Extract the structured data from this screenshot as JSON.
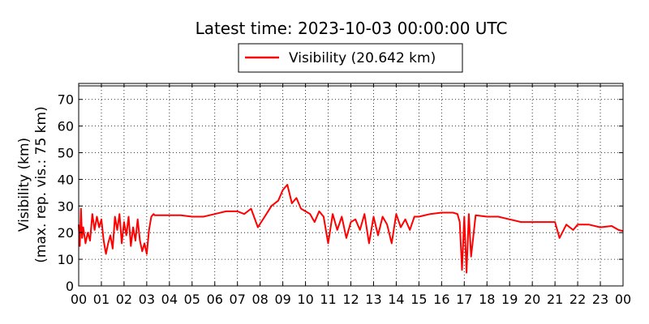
{
  "chart_data": {
    "type": "line",
    "title": "Latest time: 2023-10-03 00:00:00 UTC",
    "ylabel_line1": "Visibility (km)",
    "ylabel_line2": "(max. rep. vis.: 75 km)",
    "xlabel": "",
    "xlim": [
      0,
      24
    ],
    "ylim": [
      0,
      76
    ],
    "grid": true,
    "legend_position": "top-center",
    "x_ticks": [
      {
        "value": 0,
        "label": "00"
      },
      {
        "value": 1,
        "label": "01"
      },
      {
        "value": 2,
        "label": "02"
      },
      {
        "value": 3,
        "label": "03"
      },
      {
        "value": 4,
        "label": "04"
      },
      {
        "value": 5,
        "label": "05"
      },
      {
        "value": 6,
        "label": "06"
      },
      {
        "value": 7,
        "label": "07"
      },
      {
        "value": 8,
        "label": "08"
      },
      {
        "value": 9,
        "label": "09"
      },
      {
        "value": 10,
        "label": "10"
      },
      {
        "value": 11,
        "label": "11"
      },
      {
        "value": 12,
        "label": "12"
      },
      {
        "value": 13,
        "label": "13"
      },
      {
        "value": 14,
        "label": "14"
      },
      {
        "value": 15,
        "label": "15"
      },
      {
        "value": 16,
        "label": "16"
      },
      {
        "value": 17,
        "label": "17"
      },
      {
        "value": 18,
        "label": "18"
      },
      {
        "value": 19,
        "label": "19"
      },
      {
        "value": 20,
        "label": "20"
      },
      {
        "value": 21,
        "label": "21"
      },
      {
        "value": 22,
        "label": "22"
      },
      {
        "value": 23,
        "label": "23"
      },
      {
        "value": 24,
        "label": "00"
      }
    ],
    "y_ticks": [
      {
        "value": 0,
        "label": "0"
      },
      {
        "value": 10,
        "label": "10"
      },
      {
        "value": 20,
        "label": "20"
      },
      {
        "value": 30,
        "label": "30"
      },
      {
        "value": 40,
        "label": "40"
      },
      {
        "value": 50,
        "label": "50"
      },
      {
        "value": 60,
        "label": "60"
      },
      {
        "value": 70,
        "label": "70"
      }
    ],
    "series": [
      {
        "name": "Visibility (20.642 km)",
        "color": "#ff0000",
        "x": [
          0,
          0.05,
          0.1,
          0.15,
          0.2,
          0.3,
          0.4,
          0.5,
          0.6,
          0.7,
          0.8,
          0.9,
          1.0,
          1.1,
          1.2,
          1.3,
          1.4,
          1.5,
          1.6,
          1.7,
          1.8,
          1.9,
          2.0,
          2.1,
          2.2,
          2.3,
          2.4,
          2.5,
          2.6,
          2.7,
          2.8,
          2.9,
          3.0,
          3.1,
          3.2,
          3.3,
          3.35,
          3.4,
          3.5,
          4.0,
          4.5,
          5.0,
          5.5,
          6.0,
          6.5,
          7.0,
          7.3,
          7.6,
          7.9,
          8.2,
          8.5,
          8.8,
          9.0,
          9.2,
          9.4,
          9.6,
          9.8,
          10.0,
          10.2,
          10.4,
          10.6,
          10.8,
          11.0,
          11.2,
          11.4,
          11.6,
          11.8,
          12.0,
          12.2,
          12.4,
          12.6,
          12.8,
          13.0,
          13.2,
          13.4,
          13.6,
          13.8,
          14.0,
          14.2,
          14.4,
          14.6,
          14.8,
          15.0,
          15.5,
          16.0,
          16.5,
          16.7,
          16.8,
          16.9,
          17.0,
          17.1,
          17.2,
          17.3,
          17.5,
          18.0,
          18.5,
          19.0,
          19.5,
          20.0,
          20.5,
          21.0,
          21.2,
          21.5,
          21.8,
          22.0,
          22.5,
          23.0,
          23.5,
          23.8,
          24.0
        ],
        "y": [
          23,
          15,
          29,
          18,
          22,
          16,
          20,
          17,
          27,
          21,
          26,
          22,
          25,
          17,
          12,
          16,
          19,
          14,
          26,
          21,
          27,
          16,
          24,
          19,
          26,
          15,
          22,
          17,
          25,
          17,
          13,
          16,
          12,
          21,
          26,
          27,
          26.5,
          26.5,
          26.5,
          26.5,
          26.5,
          26,
          26,
          27,
          28,
          28,
          27,
          29,
          22,
          26,
          30,
          32,
          36,
          38,
          31,
          33,
          29,
          28,
          27,
          24,
          28,
          26,
          16,
          27,
          21,
          26,
          18,
          24,
          25,
          21,
          27,
          16,
          26,
          19,
          26,
          23,
          16,
          27,
          22,
          25,
          21,
          26,
          26,
          27,
          27.5,
          27.5,
          27,
          24,
          6,
          26,
          5,
          27,
          11,
          26.5,
          26,
          26,
          25,
          24,
          24,
          24,
          24,
          18,
          23,
          21,
          23,
          23,
          22,
          22.5,
          21,
          20.6
        ]
      }
    ]
  }
}
